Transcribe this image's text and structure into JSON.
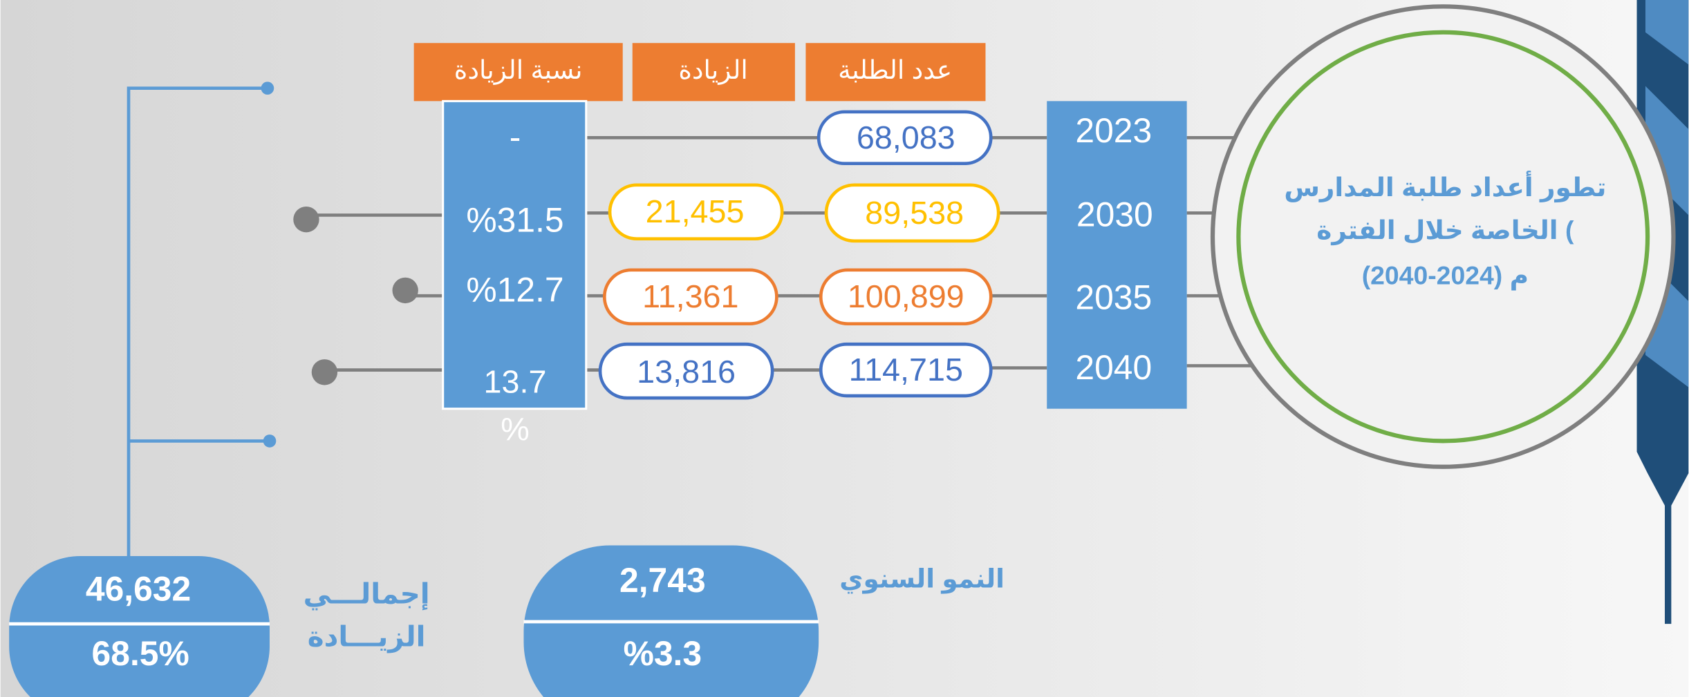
{
  "headers": {
    "percent": "نسبة الزيادة",
    "increase": "الزيادة",
    "students": "عدد الطلبة"
  },
  "rows": [
    {
      "year": "2023",
      "students": "68,083",
      "increase": null,
      "percent": "-"
    },
    {
      "year": "2030",
      "students": "89,538",
      "increase": "21,455",
      "percent": "%31.5"
    },
    {
      "year": "2035",
      "students": "100,899",
      "increase": "11,361",
      "percent": "%12.7"
    },
    {
      "year": "2040",
      "students": "114,715",
      "increase": "13,816",
      "percent": "13.7 %"
    }
  ],
  "title": {
    "lines": [
      "تطور أعداد طلبة المدارس",
      "الخاصة خلال الفترة (",
      "(2040-2024) م"
    ]
  },
  "total": {
    "label": [
      "إجمالـــي",
      "الزيـــادة"
    ],
    "value": "46,632",
    "percent": "68.5%"
  },
  "annual": {
    "label": "النمو السنوي",
    "value": "2,743",
    "percent": "%3.3"
  }
}
